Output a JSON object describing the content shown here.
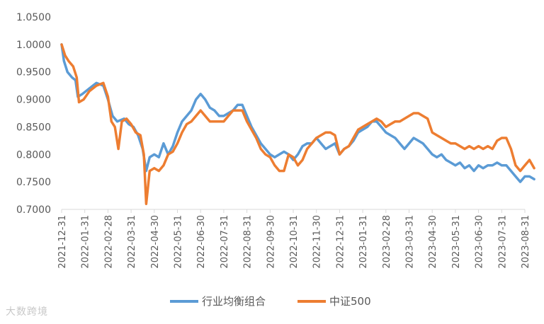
{
  "chart_data": {
    "type": "line",
    "title": "",
    "xlabel": "",
    "ylabel": "",
    "ylim": [
      0.7,
      1.05
    ],
    "yticks": [
      "1.0500",
      "1.0000",
      "0.9500",
      "0.9000",
      "0.8500",
      "0.8000",
      "0.7500",
      "0.7000"
    ],
    "xticks": [
      "2021-12-31",
      "2022-01-31",
      "2022-02-28",
      "2022-03-31",
      "2022-04-30",
      "2022-05-31",
      "2022-06-30",
      "2022-07-31",
      "2022-08-31",
      "2022-09-30",
      "2022-10-31",
      "2022-11-30",
      "2022-12-31",
      "2023-01-31",
      "2023-02-28",
      "2023-03-31",
      "2023-04-30",
      "2023-05-31",
      "2023-06-30",
      "2023-07-31",
      "2023-08-31"
    ],
    "grid": false,
    "legend": "bottom",
    "series": [
      {
        "name": "行业均衡组合",
        "color": "#5B9BD5",
        "points": [
          [
            0,
            1.0
          ],
          [
            0.1,
            0.97
          ],
          [
            0.25,
            0.95
          ],
          [
            0.45,
            0.94
          ],
          [
            0.6,
            0.935
          ],
          [
            0.7,
            0.905
          ],
          [
            0.9,
            0.91
          ],
          [
            1.2,
            0.92
          ],
          [
            1.5,
            0.93
          ],
          [
            1.8,
            0.925
          ],
          [
            2.0,
            0.9
          ],
          [
            2.2,
            0.87
          ],
          [
            2.4,
            0.86
          ],
          [
            2.7,
            0.865
          ],
          [
            2.9,
            0.855
          ],
          [
            3.1,
            0.85
          ],
          [
            3.3,
            0.835
          ],
          [
            3.5,
            0.81
          ],
          [
            3.65,
            0.77
          ],
          [
            3.8,
            0.795
          ],
          [
            4.0,
            0.8
          ],
          [
            4.2,
            0.795
          ],
          [
            4.4,
            0.82
          ],
          [
            4.6,
            0.8
          ],
          [
            4.8,
            0.815
          ],
          [
            5.0,
            0.84
          ],
          [
            5.2,
            0.86
          ],
          [
            5.4,
            0.87
          ],
          [
            5.6,
            0.88
          ],
          [
            5.8,
            0.9
          ],
          [
            6.0,
            0.91
          ],
          [
            6.2,
            0.9
          ],
          [
            6.4,
            0.885
          ],
          [
            6.6,
            0.88
          ],
          [
            6.8,
            0.87
          ],
          [
            7.0,
            0.87
          ],
          [
            7.2,
            0.875
          ],
          [
            7.4,
            0.88
          ],
          [
            7.6,
            0.89
          ],
          [
            7.8,
            0.89
          ],
          [
            8.0,
            0.87
          ],
          [
            8.2,
            0.85
          ],
          [
            8.4,
            0.835
          ],
          [
            8.6,
            0.82
          ],
          [
            8.8,
            0.81
          ],
          [
            9.0,
            0.8
          ],
          [
            9.2,
            0.795
          ],
          [
            9.4,
            0.8
          ],
          [
            9.6,
            0.805
          ],
          [
            9.8,
            0.8
          ],
          [
            10.0,
            0.79
          ],
          [
            10.2,
            0.8
          ],
          [
            10.4,
            0.815
          ],
          [
            10.6,
            0.82
          ],
          [
            10.8,
            0.82
          ],
          [
            11.0,
            0.83
          ],
          [
            11.2,
            0.82
          ],
          [
            11.4,
            0.81
          ],
          [
            11.6,
            0.815
          ],
          [
            11.8,
            0.82
          ],
          [
            12.0,
            0.8
          ],
          [
            12.2,
            0.81
          ],
          [
            12.4,
            0.815
          ],
          [
            12.6,
            0.825
          ],
          [
            12.8,
            0.84
          ],
          [
            13.0,
            0.845
          ],
          [
            13.2,
            0.85
          ],
          [
            13.4,
            0.86
          ],
          [
            13.6,
            0.86
          ],
          [
            13.8,
            0.85
          ],
          [
            14.0,
            0.84
          ],
          [
            14.2,
            0.835
          ],
          [
            14.4,
            0.83
          ],
          [
            14.6,
            0.82
          ],
          [
            14.8,
            0.81
          ],
          [
            15.0,
            0.82
          ],
          [
            15.2,
            0.83
          ],
          [
            15.4,
            0.825
          ],
          [
            15.6,
            0.82
          ],
          [
            15.8,
            0.81
          ],
          [
            16.0,
            0.8
          ],
          [
            16.2,
            0.795
          ],
          [
            16.4,
            0.8
          ],
          [
            16.6,
            0.79
          ],
          [
            16.8,
            0.785
          ],
          [
            17.0,
            0.78
          ],
          [
            17.2,
            0.785
          ],
          [
            17.4,
            0.775
          ],
          [
            17.6,
            0.78
          ],
          [
            17.8,
            0.77
          ],
          [
            18.0,
            0.78
          ],
          [
            18.2,
            0.775
          ],
          [
            18.4,
            0.78
          ],
          [
            18.6,
            0.78
          ],
          [
            18.8,
            0.785
          ],
          [
            19.0,
            0.78
          ],
          [
            19.2,
            0.78
          ],
          [
            19.4,
            0.77
          ],
          [
            19.6,
            0.76
          ],
          [
            19.8,
            0.75
          ],
          [
            20.0,
            0.76
          ],
          [
            20.2,
            0.76
          ],
          [
            20.4,
            0.755
          ]
        ]
      },
      {
        "name": "中证500",
        "color": "#ED7D31",
        "points": [
          [
            0,
            1.0
          ],
          [
            0.15,
            0.98
          ],
          [
            0.3,
            0.97
          ],
          [
            0.5,
            0.96
          ],
          [
            0.65,
            0.94
          ],
          [
            0.75,
            0.895
          ],
          [
            0.95,
            0.9
          ],
          [
            1.2,
            0.915
          ],
          [
            1.5,
            0.925
          ],
          [
            1.8,
            0.93
          ],
          [
            2.0,
            0.905
          ],
          [
            2.15,
            0.86
          ],
          [
            2.3,
            0.85
          ],
          [
            2.45,
            0.81
          ],
          [
            2.6,
            0.86
          ],
          [
            2.8,
            0.865
          ],
          [
            3.0,
            0.855
          ],
          [
            3.2,
            0.84
          ],
          [
            3.4,
            0.835
          ],
          [
            3.55,
            0.8
          ],
          [
            3.65,
            0.71
          ],
          [
            3.8,
            0.77
          ],
          [
            4.0,
            0.775
          ],
          [
            4.2,
            0.77
          ],
          [
            4.4,
            0.78
          ],
          [
            4.6,
            0.8
          ],
          [
            4.8,
            0.805
          ],
          [
            5.0,
            0.82
          ],
          [
            5.2,
            0.84
          ],
          [
            5.4,
            0.855
          ],
          [
            5.6,
            0.86
          ],
          [
            5.8,
            0.87
          ],
          [
            6.0,
            0.88
          ],
          [
            6.2,
            0.87
          ],
          [
            6.4,
            0.86
          ],
          [
            6.6,
            0.86
          ],
          [
            6.8,
            0.86
          ],
          [
            7.0,
            0.86
          ],
          [
            7.2,
            0.87
          ],
          [
            7.4,
            0.88
          ],
          [
            7.6,
            0.88
          ],
          [
            7.8,
            0.88
          ],
          [
            8.0,
            0.86
          ],
          [
            8.2,
            0.845
          ],
          [
            8.4,
            0.83
          ],
          [
            8.6,
            0.81
          ],
          [
            8.8,
            0.8
          ],
          [
            9.0,
            0.795
          ],
          [
            9.2,
            0.78
          ],
          [
            9.4,
            0.77
          ],
          [
            9.6,
            0.77
          ],
          [
            9.8,
            0.8
          ],
          [
            10.0,
            0.795
          ],
          [
            10.2,
            0.78
          ],
          [
            10.4,
            0.79
          ],
          [
            10.6,
            0.81
          ],
          [
            10.8,
            0.82
          ],
          [
            11.0,
            0.83
          ],
          [
            11.2,
            0.835
          ],
          [
            11.4,
            0.84
          ],
          [
            11.6,
            0.84
          ],
          [
            11.8,
            0.835
          ],
          [
            12.0,
            0.8
          ],
          [
            12.2,
            0.81
          ],
          [
            12.4,
            0.815
          ],
          [
            12.6,
            0.83
          ],
          [
            12.8,
            0.845
          ],
          [
            13.0,
            0.85
          ],
          [
            13.2,
            0.855
          ],
          [
            13.4,
            0.86
          ],
          [
            13.6,
            0.865
          ],
          [
            13.8,
            0.86
          ],
          [
            14.0,
            0.85
          ],
          [
            14.2,
            0.855
          ],
          [
            14.4,
            0.86
          ],
          [
            14.6,
            0.86
          ],
          [
            14.8,
            0.865
          ],
          [
            15.0,
            0.87
          ],
          [
            15.2,
            0.875
          ],
          [
            15.4,
            0.875
          ],
          [
            15.6,
            0.87
          ],
          [
            15.8,
            0.865
          ],
          [
            16.0,
            0.84
          ],
          [
            16.2,
            0.835
          ],
          [
            16.4,
            0.83
          ],
          [
            16.6,
            0.825
          ],
          [
            16.8,
            0.82
          ],
          [
            17.0,
            0.82
          ],
          [
            17.2,
            0.815
          ],
          [
            17.4,
            0.81
          ],
          [
            17.6,
            0.815
          ],
          [
            17.8,
            0.81
          ],
          [
            18.0,
            0.815
          ],
          [
            18.2,
            0.81
          ],
          [
            18.4,
            0.815
          ],
          [
            18.6,
            0.81
          ],
          [
            18.8,
            0.825
          ],
          [
            19.0,
            0.83
          ],
          [
            19.2,
            0.83
          ],
          [
            19.4,
            0.81
          ],
          [
            19.6,
            0.78
          ],
          [
            19.8,
            0.77
          ],
          [
            20.0,
            0.78
          ],
          [
            20.2,
            0.79
          ],
          [
            20.4,
            0.775
          ]
        ]
      }
    ]
  },
  "watermark": "大数跨境"
}
